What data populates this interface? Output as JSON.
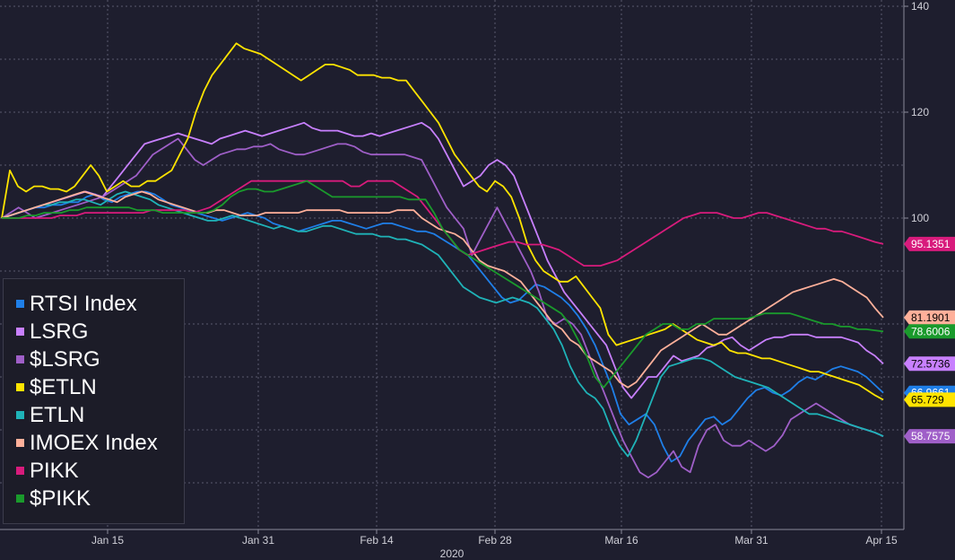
{
  "chart_data": {
    "type": "line",
    "xlabel": "2020",
    "x_ticks": [
      "Jan 15",
      "Jan 31",
      "Feb 14",
      "Feb 28",
      "Mar 16",
      "Mar 31",
      "Apr 15"
    ],
    "y_ticks": [
      140,
      120,
      100
    ],
    "ylim": [
      42,
      142
    ],
    "grid": true,
    "legend_position": "bottom-left",
    "series": [
      {
        "name": "RTSI Index",
        "color": "#1f7fe8",
        "last_label": "66.9661",
        "values": [
          100,
          100.5,
          101,
          101.5,
          102,
          102,
          102.5,
          102.5,
          103,
          103,
          104,
          104.5,
          103.5,
          103,
          104,
          104.5,
          105,
          105,
          104.5,
          103.5,
          102.5,
          102,
          101.5,
          101,
          100.5,
          100,
          99.5,
          100,
          100.5,
          101,
          100.5,
          100,
          99,
          98.5,
          98,
          97.5,
          98,
          98.5,
          99,
          99.5,
          99.5,
          99,
          98.5,
          98,
          98.5,
          99,
          99,
          98.5,
          98,
          97.5,
          97.5,
          97,
          96,
          95,
          94,
          93,
          91,
          89,
          87,
          85,
          84,
          84.5,
          86,
          87.5,
          87,
          86,
          85,
          83.5,
          81.5,
          79,
          76,
          72,
          68,
          63,
          61,
          62,
          63,
          61,
          57,
          54,
          55,
          58,
          60,
          62,
          62.5,
          61,
          62,
          64,
          66,
          67.5,
          68,
          67,
          66.5,
          67.5,
          69,
          70,
          69.5,
          70.5,
          71.5,
          72,
          71.5,
          71,
          70,
          68.5,
          67
        ]
      },
      {
        "name": "LSRG",
        "color": "#c880ff",
        "last_label": "72.5736",
        "values": [
          100,
          100.5,
          101,
          101.5,
          102,
          102.5,
          103,
          103.5,
          104,
          104.5,
          105,
          104.5,
          104,
          106,
          108,
          110,
          112,
          114,
          114.5,
          115,
          115.5,
          116,
          115.5,
          115,
          114.5,
          114,
          115,
          115.5,
          116,
          116.5,
          116,
          115.5,
          116,
          116.5,
          117,
          117.5,
          118,
          117,
          116.5,
          116.5,
          116.5,
          116,
          115.5,
          115.5,
          116,
          115.5,
          116,
          116.5,
          117,
          117.5,
          118,
          117,
          115,
          112,
          109,
          106,
          107,
          108,
          110,
          111,
          110,
          108,
          104,
          100,
          96,
          92,
          89,
          86,
          84,
          82,
          80,
          78,
          76,
          72,
          68,
          66,
          68,
          70,
          70,
          72,
          74,
          73,
          73.5,
          74,
          75.5,
          76,
          77,
          77.5,
          76,
          75,
          76,
          77,
          77.5,
          77.5,
          78,
          78,
          78,
          77.5,
          77.5,
          77.5,
          77.5,
          77,
          76.5,
          75,
          74,
          72.5
        ]
      },
      {
        "name": "$LSRG",
        "color": "#9f5fc8",
        "last_label": "58.7575",
        "values": [
          100,
          101,
          102,
          101,
          100,
          100.5,
          101,
          101.5,
          102,
          102.5,
          103,
          103.5,
          104,
          105,
          106,
          107,
          108,
          110,
          112,
          113,
          114,
          115,
          113,
          111,
          110,
          111,
          112,
          112.5,
          113,
          113,
          113.5,
          113.5,
          114,
          113,
          112.5,
          112,
          112,
          112.5,
          113,
          113.5,
          114,
          114,
          113.5,
          112.5,
          112,
          112,
          112,
          112,
          112,
          111.5,
          111,
          108,
          105,
          102,
          100,
          98,
          93,
          96,
          99,
          102,
          99,
          96,
          93,
          90,
          86,
          81,
          80,
          81,
          80,
          78,
          74,
          70,
          66,
          62,
          58,
          55,
          52,
          51,
          52,
          54,
          56,
          53,
          52,
          57,
          60,
          61,
          58,
          57,
          57,
          58,
          57,
          56,
          57,
          59,
          62,
          63,
          64,
          65,
          64,
          63,
          62,
          61,
          60.5,
          60,
          59.5,
          58.8
        ]
      },
      {
        "name": "$ETLN",
        "color": "#ffe400",
        "last_label": "65.729",
        "values": [
          100,
          109,
          106,
          105,
          106,
          106,
          105.5,
          105.5,
          105,
          106,
          108,
          110,
          108,
          105,
          106,
          107,
          106,
          106,
          107,
          107,
          108,
          109,
          112,
          115,
          120,
          124,
          127,
          129,
          131,
          133,
          132,
          131.5,
          131,
          130,
          129,
          128,
          127,
          126,
          127,
          128,
          129,
          129,
          128.5,
          128,
          127,
          127,
          127,
          126.5,
          126.5,
          126,
          126,
          124,
          122,
          120,
          118,
          115,
          112,
          110,
          108,
          106,
          105,
          107,
          106,
          104,
          100,
          95,
          92,
          90,
          89,
          88,
          88,
          89,
          87,
          85,
          83,
          78,
          76,
          76.5,
          77,
          77.5,
          78,
          78.5,
          79,
          80,
          79,
          78,
          77,
          76.5,
          76,
          76.5,
          75,
          74.5,
          74.5,
          74,
          73.5,
          73.5,
          73,
          72.5,
          72,
          71.5,
          71,
          71,
          70.5,
          70,
          69.5,
          69,
          68.5,
          67.5,
          66.5,
          65.7
        ]
      },
      {
        "name": "ETLN",
        "color": "#1fb3b8",
        "last_label": "",
        "values": [
          100,
          100.5,
          101,
          101.5,
          102,
          102.5,
          102.5,
          103,
          103,
          103.5,
          103.5,
          103,
          102.5,
          103.5,
          104.5,
          105,
          104.5,
          104,
          103.5,
          102.5,
          102,
          101.5,
          101,
          100.5,
          100,
          99.5,
          99.5,
          100,
          100.5,
          100,
          99.5,
          99,
          98.5,
          98,
          98.5,
          98,
          97.5,
          97.5,
          98,
          98.5,
          98.5,
          98,
          97.5,
          97,
          97,
          97,
          96.5,
          96.5,
          96,
          96,
          95.5,
          95,
          94,
          93,
          91,
          89,
          87,
          86,
          85,
          84.5,
          84,
          84.5,
          85,
          84.5,
          84,
          83,
          81,
          79,
          76,
          72,
          69,
          67,
          66,
          64,
          60,
          57,
          55,
          58,
          62,
          66,
          70,
          72,
          72.5,
          73,
          73.5,
          73.5,
          73,
          72,
          71,
          70,
          69.5,
          69,
          68.5,
          68,
          67,
          66,
          65,
          64,
          63,
          63,
          62.5,
          62,
          61.5,
          61,
          60.5,
          60,
          59.5,
          58.8
        ]
      },
      {
        "name": "IMOEX Index",
        "color": "#ffb09a",
        "last_label": "81.1901",
        "values": [
          100,
          100.5,
          101,
          101.5,
          102,
          102.5,
          103,
          103.5,
          104,
          104.5,
          105,
          104.5,
          104,
          103.5,
          103,
          104,
          104.5,
          105,
          104.5,
          103.5,
          103,
          102.5,
          102,
          101.5,
          101,
          101,
          101.5,
          101.5,
          101,
          100.5,
          100.5,
          100.5,
          101,
          101,
          101,
          101,
          101,
          101.5,
          101.5,
          101.5,
          101.5,
          101.5,
          101,
          101,
          101,
          101,
          101,
          101,
          101.5,
          101.5,
          101.5,
          100,
          99,
          98,
          97.5,
          97,
          96,
          94,
          92,
          91,
          90.5,
          90,
          89,
          88,
          86,
          84,
          82,
          80,
          79,
          77,
          76,
          74,
          73,
          72,
          71,
          69,
          68,
          69,
          71,
          73,
          75,
          76,
          77,
          78,
          79,
          80,
          79,
          78,
          78,
          79,
          80,
          81,
          82,
          83,
          84,
          85,
          86,
          86.5,
          87,
          87.5,
          88,
          88.5,
          88,
          87,
          86,
          85,
          83,
          81.2
        ]
      },
      {
        "name": "PIKK",
        "color": "#d81b7c",
        "last_label": "95.1351",
        "values": [
          100,
          100,
          100,
          100,
          100,
          100,
          100,
          100.5,
          100.5,
          100.5,
          101,
          101,
          101,
          101,
          101,
          101,
          101,
          101,
          101.5,
          101.5,
          101.5,
          101.5,
          101.5,
          101,
          101.5,
          102,
          103,
          104,
          105,
          106,
          107,
          107,
          107,
          107,
          107,
          107,
          107,
          107,
          107,
          107,
          107,
          107,
          106,
          106,
          107,
          107,
          107,
          107,
          106,
          105,
          104,
          102,
          100,
          98,
          96,
          94,
          93,
          93.5,
          94,
          94.5,
          95,
          95.5,
          95.5,
          95,
          95,
          95,
          94.5,
          94,
          93,
          92,
          91,
          91,
          91,
          91.5,
          92,
          93,
          94,
          95,
          96,
          97,
          98,
          99,
          100,
          100.5,
          101,
          101,
          101,
          100.5,
          100,
          100,
          100.5,
          101,
          101,
          100.5,
          100,
          99.5,
          99,
          98.5,
          98,
          98,
          97.5,
          97.5,
          97,
          96.5,
          96,
          95.5,
          95.1
        ]
      },
      {
        "name": "$PIKK",
        "color": "#1a9a2c",
        "last_label": "78.6006",
        "values": [
          100,
          100,
          100,
          100.5,
          100.5,
          101,
          101,
          101,
          101.5,
          101.5,
          102,
          102,
          102,
          102,
          102,
          102,
          101.5,
          101.5,
          101.5,
          101,
          101,
          101,
          101,
          101,
          101,
          101.5,
          102.5,
          104,
          105,
          105.5,
          105.5,
          105,
          105,
          105.5,
          106,
          106.5,
          107,
          106,
          105,
          104,
          104,
          104,
          104,
          104,
          104,
          104,
          104,
          104,
          103.5,
          103.5,
          103.5,
          101,
          98,
          96,
          94,
          93,
          92,
          91,
          90,
          89,
          88,
          87,
          86,
          85,
          84,
          83,
          82,
          80,
          77,
          74,
          70,
          68,
          70,
          72,
          74,
          76,
          78,
          79,
          80,
          80,
          79,
          79,
          80,
          80,
          81,
          81,
          81,
          81,
          81,
          81.5,
          82,
          82,
          82,
          82,
          81.5,
          81,
          80.5,
          80,
          80,
          79.5,
          79.5,
          79,
          79,
          78.8,
          78.6
        ]
      }
    ]
  }
}
